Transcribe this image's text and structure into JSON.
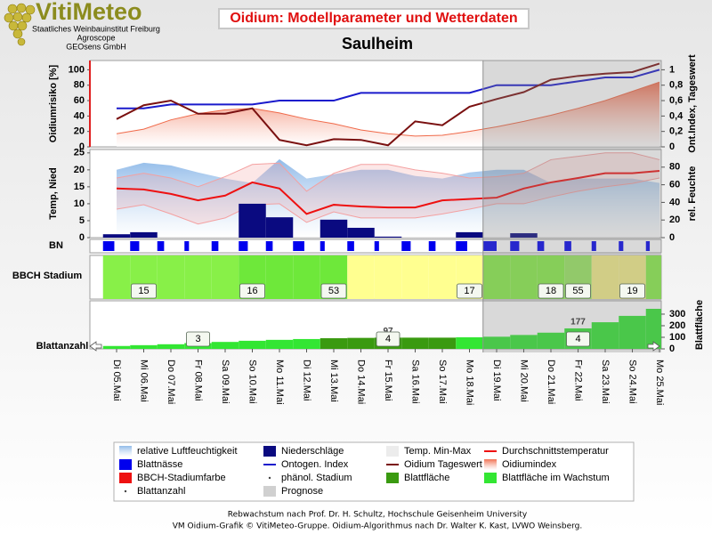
{
  "header": {
    "logo": "VitiMeteo",
    "org": [
      "Staatliches Weinbauinstitut Freiburg",
      "Agroscope",
      "GEOsens GmbH"
    ],
    "title": "Oidium: Modellparameter und Wetterdaten",
    "subtitle": "Saulheim"
  },
  "forecast_start": 14,
  "forecast_color": "#808080",
  "chart_data": [
    {
      "type": "line",
      "ylabel": "Oidiumrisiko [%]",
      "y2label": "Ont.Index, Tageswert",
      "ylim": [
        0,
        112
      ],
      "yticks": [
        0,
        20,
        40,
        60,
        80,
        100
      ],
      "y2lim": [
        0,
        1.12
      ],
      "y2ticks": [
        0,
        {
          "value": 0.2,
          "label": "0,2"
        },
        {
          "value": 0.4,
          "label": "0,4"
        },
        {
          "value": 0.6,
          "label": "0,6"
        },
        {
          "value": 0.8,
          "label": "0,8"
        },
        1
      ],
      "series": [
        {
          "type": "area",
          "color": "#f06a4a",
          "values": [
            17,
            23,
            35,
            43,
            48,
            50,
            44,
            36,
            30,
            22,
            17,
            14,
            15,
            20,
            26,
            33,
            41,
            50,
            60,
            72,
            84
          ]
        },
        {
          "type": "line",
          "axis": "y2",
          "color": "#1a1acc",
          "values": [
            0.5,
            0.5,
            0.55,
            0.55,
            0.55,
            0.55,
            0.6,
            0.6,
            0.6,
            0.7,
            0.7,
            0.7,
            0.7,
            0.7,
            0.8,
            0.8,
            0.8,
            0.85,
            0.9,
            0.9,
            1.0
          ]
        },
        {
          "type": "line",
          "axis": "y2",
          "color": "#7a1010",
          "values": [
            0.36,
            0.54,
            0.6,
            0.43,
            0.43,
            0.5,
            0.09,
            0.02,
            0.1,
            0.09,
            0.02,
            0.33,
            0.28,
            0.52,
            0.62,
            0.71,
            0.87,
            0.92,
            0.95,
            0.97,
            1.08
          ]
        }
      ]
    },
    {
      "type": "combo",
      "ylabel": "Temp, Nied",
      "y2label": "rel. Feuchte",
      "ylim": [
        0,
        26
      ],
      "yticks": [
        0,
        5,
        10,
        15,
        20,
        25
      ],
      "y2lim": [
        0,
        100
      ],
      "y2ticks": [
        0,
        20,
        40,
        60,
        80
      ],
      "series": [
        {
          "type": "area",
          "axis": "y2",
          "color": "#8cb8e8",
          "values": [
            77,
            85,
            82,
            74,
            67,
            62,
            89,
            67,
            72,
            77,
            77,
            70,
            67,
            74,
            77,
            77,
            62,
            67,
            67,
            67,
            62
          ]
        },
        {
          "type": "band",
          "color": "#f4a0a0",
          "values": [
            17.6,
            19,
            17.6,
            15,
            18,
            21.6,
            22,
            13.7,
            19,
            21.6,
            21.6,
            20,
            19,
            17.6,
            18,
            19,
            23,
            24,
            25,
            25,
            23
          ],
          "min": [
            8.4,
            9.7,
            7,
            4,
            5.8,
            9.7,
            10,
            4.5,
            7.6,
            5.8,
            5.8,
            5.8,
            7,
            8.4,
            10,
            10,
            12,
            13.7,
            15,
            16,
            17.6
          ]
        },
        {
          "type": "bar",
          "color": "#0a0a80",
          "values": [
            1,
            1.6,
            0,
            0,
            0,
            10,
            6,
            0,
            5.3,
            2.9,
            0.3,
            0,
            0,
            1.6,
            0,
            1.3,
            0,
            0,
            0,
            0,
            0
          ]
        },
        {
          "type": "line",
          "color": "#ee1111",
          "values": [
            14.5,
            14.2,
            12.9,
            11,
            12.4,
            16.3,
            14.5,
            7,
            9.7,
            9.2,
            8.9,
            8.9,
            11,
            11.4,
            11.8,
            14.5,
            16.3,
            17.6,
            19,
            19,
            19.7
          ]
        }
      ]
    },
    {
      "type": "strip",
      "ylabel": "BN",
      "color": "#0000ee",
      "ylim": [
        0,
        24
      ],
      "values": [
        10,
        8,
        6,
        4,
        6,
        8,
        6,
        10,
        4,
        6,
        4,
        8,
        6,
        10,
        12,
        8,
        6,
        6,
        4,
        4,
        6
      ]
    },
    {
      "type": "stage",
      "ylabel": "BBCH Stadium",
      "colors": [
        "#88f048",
        "#88f048",
        "#88f048",
        "#88f048",
        "#88f048",
        "#6ee83a",
        "#6ee83a",
        "#6ee83a",
        "#6ee83a",
        "#ffff90",
        "#ffff90",
        "#ffff90",
        "#ffff90",
        "#ffff90",
        "#88f048",
        "#88f048",
        "#88f048",
        "#9ae860",
        "#f4ee88",
        "#f4ee88",
        "#88f048"
      ],
      "values": [
        null,
        15,
        null,
        null,
        null,
        16,
        null,
        null,
        53,
        null,
        null,
        null,
        null,
        17,
        null,
        null,
        18,
        55,
        null,
        19,
        null
      ]
    },
    {
      "type": "bar",
      "ylabel": "Blattanzahl",
      "y2label": "Blattfläche",
      "y2lim": [
        0,
        415
      ],
      "y2ticks": [
        0,
        100,
        200,
        300
      ],
      "categories": [
        "Di 05.Mai",
        "Mi 06.Mai",
        "Do 07.Mai",
        "Fr 08.Mai",
        "Sa 09.Mai",
        "So 10.Mai",
        "Mo 11.Mai",
        "Di 12.Mai",
        "Mi 13.Mai",
        "Do 14.Mai",
        "Fr 15.Mai",
        "Sa 16.Mai",
        "So 17.Mai",
        "Mo 18.Mai",
        "Di 19.Mai",
        "Mi 20.Mai",
        "Do 21.Mai",
        "Fr 22.Mai",
        "Sa 23.Mai",
        "So 24.Mai",
        "Mo 25.Mai"
      ],
      "series": [
        {
          "axis": "y2",
          "color": "#3a9a10",
          "values": [
            null,
            null,
            null,
            null,
            null,
            null,
            null,
            null,
            92,
            95,
            97,
            97,
            97,
            null,
            null,
            null,
            null,
            null,
            null,
            null,
            null
          ],
          "value_labels": [
            null,
            null,
            null,
            null,
            null,
            null,
            null,
            null,
            null,
            null,
            "97",
            null,
            null,
            null,
            null,
            null,
            null,
            null,
            null,
            null,
            null
          ]
        },
        {
          "axis": "y2",
          "color": "#33e633",
          "values": [
            25,
            32,
            40,
            50,
            60,
            70,
            78,
            85,
            null,
            null,
            null,
            null,
            null,
            100,
            105,
            120,
            140,
            177,
            230,
            285,
            346
          ],
          "value_labels": [
            null,
            null,
            null,
            null,
            null,
            null,
            null,
            null,
            null,
            null,
            null,
            null,
            null,
            null,
            null,
            null,
            null,
            "177",
            null,
            null,
            null
          ]
        }
      ],
      "counts": [
        null,
        null,
        null,
        3,
        null,
        null,
        null,
        null,
        null,
        null,
        4,
        null,
        null,
        null,
        null,
        null,
        null,
        4,
        null,
        null,
        null
      ]
    }
  ],
  "legend": [
    {
      "label": "relative Luftfeuchtigkeit",
      "color": "#8cb8e8",
      "style": "area"
    },
    {
      "label": "Niederschläge",
      "color": "#0a0a80",
      "style": "box"
    },
    {
      "label": "Temp. Min-Max",
      "color": "#ececec",
      "style": "box"
    },
    {
      "label": "Durchschnittstemperatur",
      "color": "#ee1111",
      "style": "line"
    },
    {
      "label": "Blattnässe",
      "color": "#0000ee",
      "style": "box"
    },
    {
      "label": "Ontogen. Index",
      "color": "#1a1acc",
      "style": "line"
    },
    {
      "label": "Oidium Tageswert",
      "color": "#7a1010",
      "style": "line"
    },
    {
      "label": "Oidiumindex",
      "color": "#f06a4a",
      "style": "area"
    },
    {
      "label": "BBCH-Stadiumfarbe",
      "color": "#ee1111",
      "style": "box"
    },
    {
      "label": "phänol. Stadium",
      "color": "#444444",
      "style": "dot"
    },
    {
      "label": "Blattfläche",
      "color": "#3a9a10",
      "style": "box"
    },
    {
      "label": "Blattfläche im Wachstum",
      "color": "#33e633",
      "style": "box"
    },
    {
      "label": "Blattanzahl",
      "color": "#444444",
      "style": "dot"
    },
    {
      "label": "Prognose",
      "color": "#d0d0d0",
      "style": "box"
    }
  ],
  "footer": [
    "Rebwachstum nach Prof. Dr. H. Schultz, Hochschule Geisenheim University",
    "VM Oidium-Grafik © VitiMeteo-Gruppe. Oidium-Algorithmus nach Dr. Walter K. Kast, LVWO Weinsberg."
  ]
}
